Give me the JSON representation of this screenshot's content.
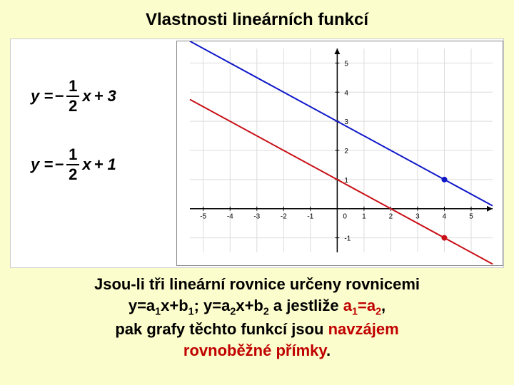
{
  "title": "Vlastnosti lineárních funkcí",
  "equations": {
    "eq1": {
      "lhs": "y =",
      "neg": "−",
      "num": "1",
      "den": "2",
      "var": "x",
      "tail": "+ 3"
    },
    "eq2": {
      "lhs": "y =",
      "neg": "−",
      "num": "1",
      "den": "2",
      "var": "x",
      "tail": "+ 1"
    }
  },
  "chart": {
    "type": "line",
    "background_color": "#ffffff",
    "axis_color": "#000000",
    "grid_color": "#dcdcdc",
    "tick_color": "#000000",
    "label_fontsize": 10,
    "xlim": [
      -5.5,
      5.8
    ],
    "ylim": [
      -1.5,
      5.5
    ],
    "xtick_step": 1,
    "ytick_step": 1,
    "lines": [
      {
        "slope": -0.5,
        "intercept": 3,
        "color": "#1018c8",
        "width": 2,
        "point_at_x": 4,
        "point_color": "#1018c8",
        "point_r": 4
      },
      {
        "slope": -0.5,
        "intercept": 1,
        "color": "#c81018",
        "width": 2,
        "point_at_x": 4,
        "point_color": "#c81018",
        "point_r": 4
      }
    ]
  },
  "statement": {
    "l1a": "Jsou-li tři lineární rovnice určeny rovnicemi",
    "l2a": "y=a",
    "l2s1": "1",
    "l2b": "x+b",
    "l2s2": "1",
    "l2c": "; y=a",
    "l2s3": "2",
    "l2d": "x+b",
    "l2s4": "2",
    "l2e": "   a jestliže    ",
    "l2red_a": "a",
    "l2red_s1": "1",
    "l2red_eq": "=a",
    "l2red_s2": "2",
    "l2tail": ",",
    "l3a": "pak grafy těchto funkcí jsou ",
    "l3red": "navzájem",
    "l4red": "rovnoběžné přímky",
    "l4dot": "."
  }
}
